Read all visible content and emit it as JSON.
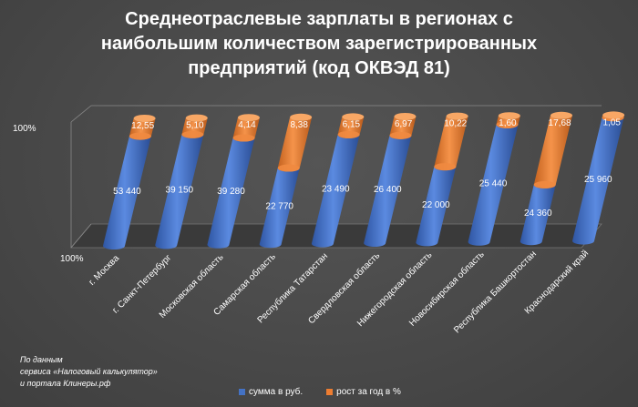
{
  "chart_data": {
    "type": "bar",
    "style": "3d-cylinder-stacked-100",
    "title": "Среднеотраслевые зарплаты в регионах с наибольшим количеством зарегистрированных предприятий (код ОКВЭД 81)",
    "title_lines": [
      "Среднеотраслевые зарплаты в регионах с",
      "наибольшим количеством зарегистрированных",
      "предприятий (код ОКВЭД 81)"
    ],
    "categories": [
      "г. Москва",
      "г. Санкт-Петербург",
      "Московская область",
      "Самарская область",
      "Республика Татарстан",
      "Свердловская область",
      "Нижегородская область",
      "Новосибирская область",
      "Республика Башкортостан",
      "Краснодарский край"
    ],
    "series": [
      {
        "name": "сумма в руб.",
        "color": "#4472C4",
        "labels": [
          "53 440",
          "39 150",
          "39 280",
          "22 770",
          "23 490",
          "26 400",
          "22 000",
          "25 440",
          "24 360",
          "25 960"
        ],
        "values": [
          53440,
          39150,
          39280,
          22770,
          23490,
          26400,
          22000,
          25440,
          24360,
          25960
        ]
      },
      {
        "name": "рост за год в %",
        "color": "#ED7D31",
        "labels": [
          "12,55",
          "5,10",
          "4,14",
          "8,38",
          "6,15",
          "6,97",
          "10,22",
          "1,60",
          "17,68",
          "1,05"
        ],
        "values": [
          12.55,
          5.1,
          4.14,
          8.38,
          6.15,
          6.97,
          10.22,
          1.6,
          17.68,
          1.05
        ],
        "visual_share_pct": [
          14,
          13,
          16,
          40,
          14,
          15,
          40,
          7,
          55,
          2
        ]
      }
    ],
    "y_ticks": [
      "100%",
      "100%"
    ],
    "legend_position": "bottom"
  },
  "source_note": [
    "По данным",
    "сервиса «Налоговый калькулятор»",
    "и портала Клинеры.рф"
  ]
}
